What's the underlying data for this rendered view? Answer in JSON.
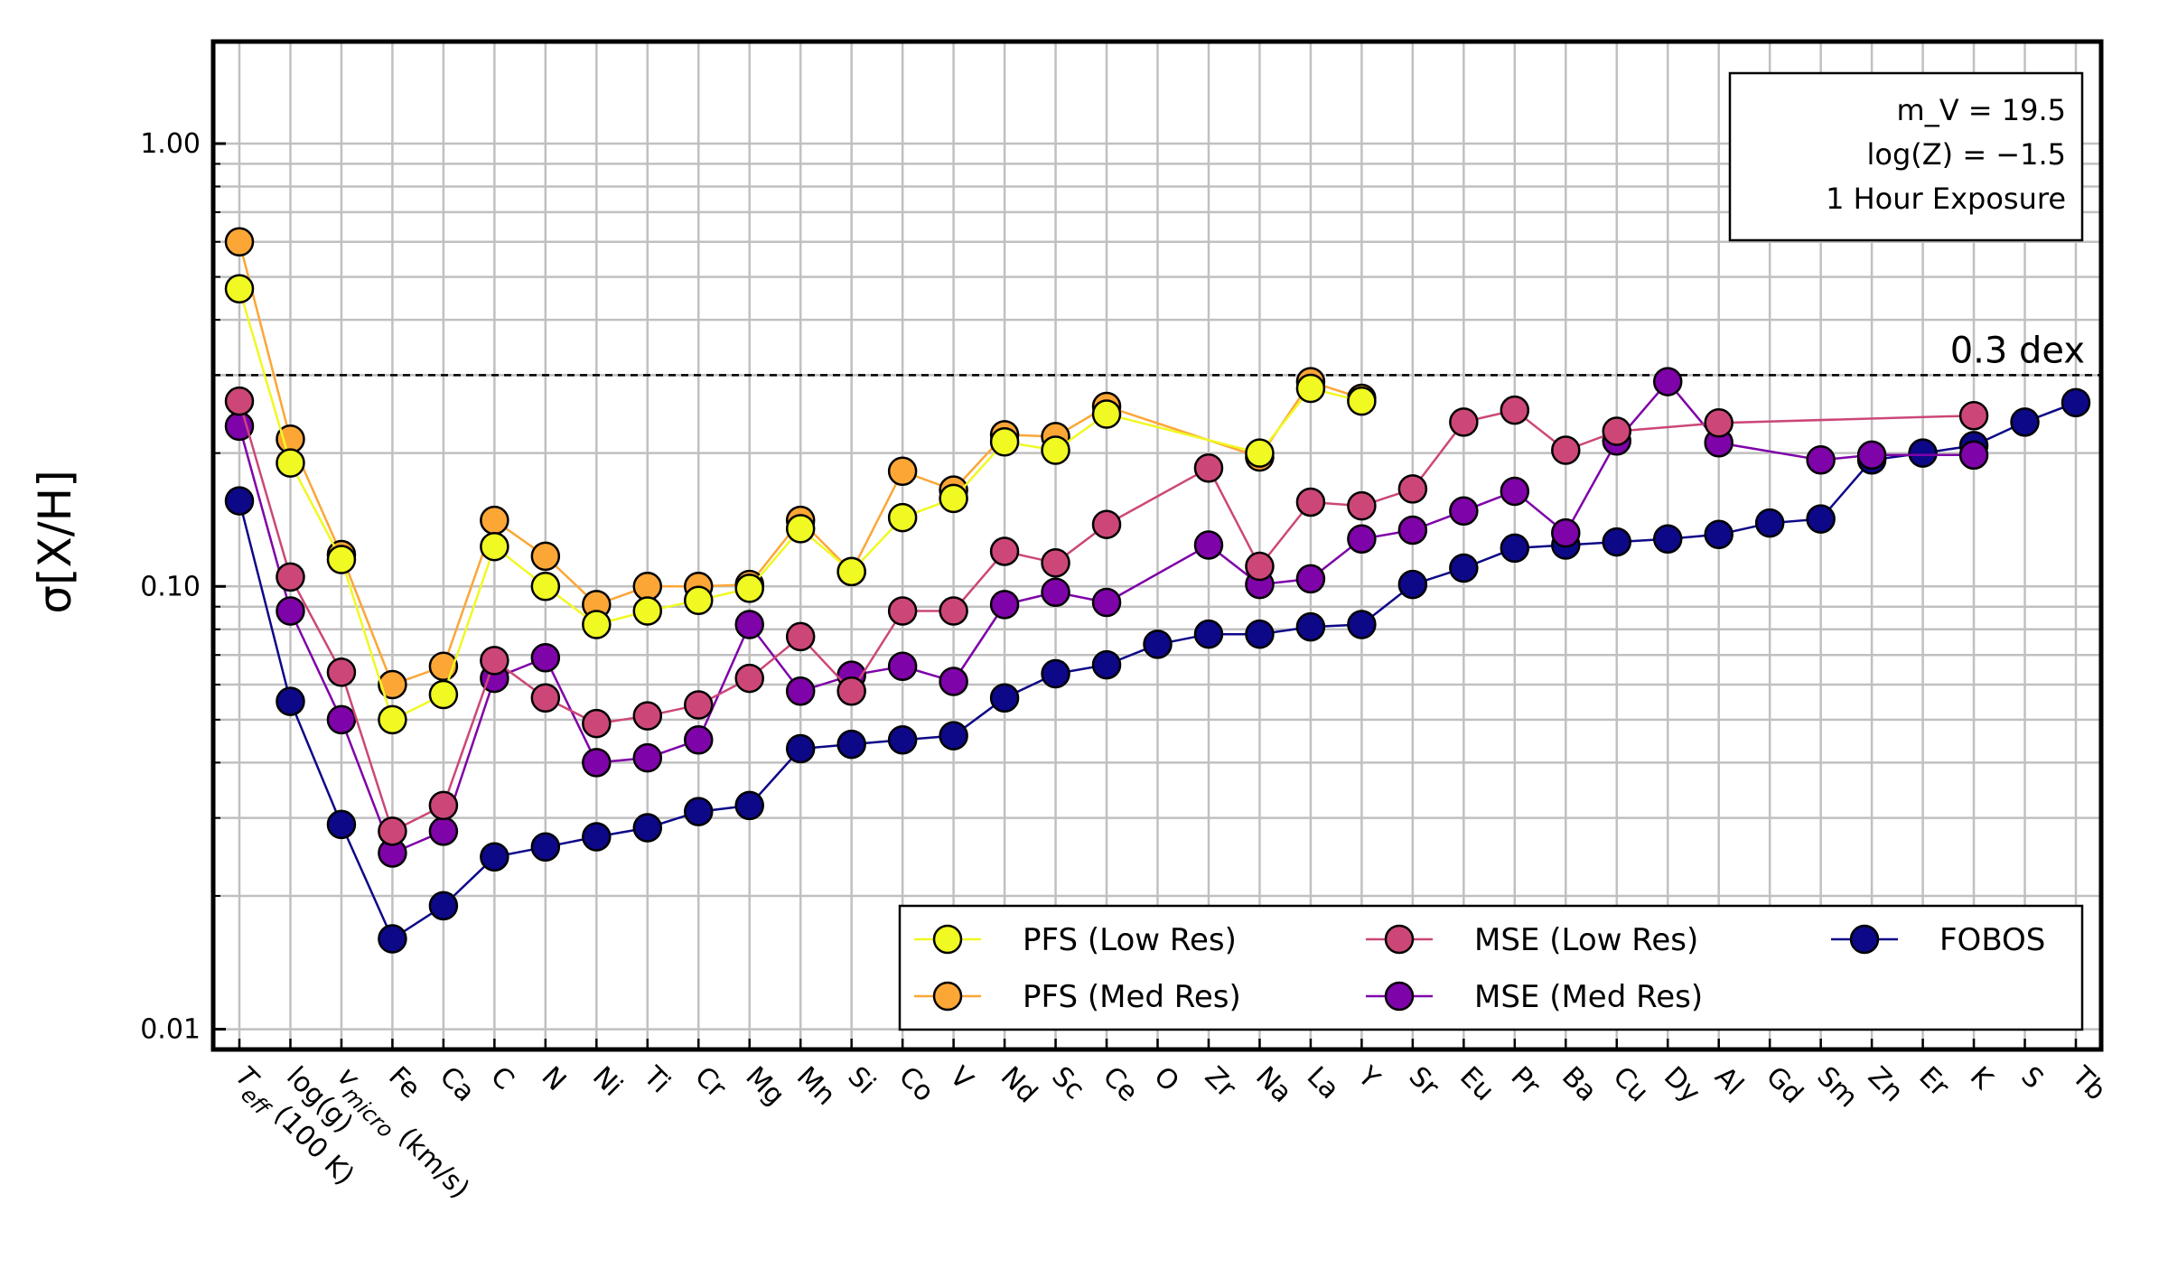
{
  "chart_data": {
    "type": "line",
    "ylabel": "σ[X/H]",
    "yscale": "log",
    "ylim": [
      0.009,
      1.7
    ],
    "yticks": [
      "0.01",
      "0.10",
      "1.00"
    ],
    "grid": true,
    "legend_position": "lower right",
    "categories": [
      "T_eff (100 K)",
      "log(g)",
      "v_micro (km/s)",
      "Fe",
      "Ca",
      "C",
      "N",
      "Ni",
      "Ti",
      "Cr",
      "Mg",
      "Mn",
      "Si",
      "Co",
      "V",
      "Nd",
      "Sc",
      "Ce",
      "O",
      "Zr",
      "Na",
      "La",
      "Y",
      "Sr",
      "Eu",
      "Pr",
      "Ba",
      "Cu",
      "Dy",
      "Al",
      "Gd",
      "Sm",
      "Zn",
      "Er",
      "K",
      "S",
      "Tb"
    ],
    "category_display": [
      {
        "main": "T",
        "sub": "eff",
        "rest": " (100 K)",
        "italic": true
      },
      {
        "main": "log(g)"
      },
      {
        "main": "v",
        "sub": "micro",
        "rest": " (km/s)",
        "italic": true
      },
      {
        "main": "Fe"
      },
      {
        "main": "Ca"
      },
      {
        "main": "C"
      },
      {
        "main": "N"
      },
      {
        "main": "Ni"
      },
      {
        "main": "Ti"
      },
      {
        "main": "Cr"
      },
      {
        "main": "Mg"
      },
      {
        "main": "Mn"
      },
      {
        "main": "Si"
      },
      {
        "main": "Co"
      },
      {
        "main": "V"
      },
      {
        "main": "Nd"
      },
      {
        "main": "Sc"
      },
      {
        "main": "Ce"
      },
      {
        "main": "O"
      },
      {
        "main": "Zr"
      },
      {
        "main": "Na"
      },
      {
        "main": "La"
      },
      {
        "main": "Y"
      },
      {
        "main": "Sr"
      },
      {
        "main": "Eu"
      },
      {
        "main": "Pr"
      },
      {
        "main": "Ba"
      },
      {
        "main": "Cu"
      },
      {
        "main": "Dy"
      },
      {
        "main": "Al"
      },
      {
        "main": "Gd"
      },
      {
        "main": "Sm"
      },
      {
        "main": "Zn"
      },
      {
        "main": "Er"
      },
      {
        "main": "K"
      },
      {
        "main": "S"
      },
      {
        "main": "Tb"
      }
    ],
    "series": [
      {
        "name": "PFS (Low Res)",
        "color": "#f0f921",
        "values": [
          0.47,
          0.19,
          0.115,
          0.05,
          0.057,
          0.123,
          0.1,
          0.082,
          0.088,
          0.093,
          0.099,
          0.135,
          0.108,
          0.143,
          0.158,
          0.212,
          0.203,
          0.245,
          null,
          null,
          0.2,
          0.28,
          0.262,
          null,
          null,
          null,
          null,
          null,
          null,
          null,
          null,
          null,
          null,
          null,
          null,
          null,
          null
        ]
      },
      {
        "name": "PFS (Med Res)",
        "color": "#fca636",
        "values": [
          0.6,
          0.215,
          0.118,
          0.06,
          0.066,
          0.141,
          0.117,
          0.091,
          0.1,
          0.1,
          0.101,
          0.141,
          0.108,
          0.182,
          0.165,
          0.22,
          0.218,
          0.255,
          null,
          null,
          0.196,
          0.29,
          0.266,
          null,
          null,
          null,
          null,
          null,
          null,
          null,
          null,
          null,
          null,
          null,
          null,
          null,
          null
        ]
      },
      {
        "name": "MSE (Low Res)",
        "color": "#cc4778",
        "values": [
          0.262,
          0.105,
          0.064,
          0.028,
          0.032,
          0.068,
          0.056,
          0.049,
          0.051,
          0.054,
          0.062,
          0.077,
          0.058,
          0.088,
          0.088,
          0.12,
          0.113,
          0.138,
          null,
          0.185,
          0.111,
          0.155,
          0.152,
          0.166,
          0.235,
          0.25,
          0.203,
          0.224,
          null,
          0.234,
          null,
          null,
          null,
          null,
          0.243,
          null,
          null
        ]
      },
      {
        "name": "MSE (Med Res)",
        "color": "#7e03a8",
        "values": [
          0.23,
          0.088,
          0.05,
          0.025,
          0.028,
          0.062,
          0.069,
          0.04,
          0.041,
          0.045,
          0.082,
          0.058,
          0.063,
          0.066,
          0.061,
          0.091,
          0.097,
          0.092,
          null,
          0.124,
          0.101,
          0.104,
          0.128,
          0.134,
          0.148,
          0.164,
          0.132,
          0.213,
          0.29,
          0.211,
          null,
          0.193,
          0.198,
          null,
          0.198,
          null,
          null
        ]
      },
      {
        "name": "FOBOS",
        "color": "#0d0887",
        "values": [
          0.156,
          0.055,
          0.029,
          0.016,
          0.019,
          0.0245,
          0.0258,
          0.0272,
          0.0285,
          0.031,
          0.032,
          0.043,
          0.044,
          0.045,
          0.046,
          0.056,
          0.0635,
          0.0665,
          0.074,
          0.078,
          0.078,
          0.081,
          0.082,
          0.101,
          0.11,
          0.122,
          0.124,
          0.126,
          0.128,
          0.131,
          0.139,
          0.142,
          0.193,
          0.2,
          0.208,
          0.235,
          0.26
        ]
      }
    ],
    "reference_line": {
      "value": 0.3,
      "label": "0.3 dex",
      "style": "dashed"
    },
    "annotation_lines": [
      "m_V = 19.5",
      "log(Z) = −1.5",
      "1 Hour Exposure"
    ]
  }
}
